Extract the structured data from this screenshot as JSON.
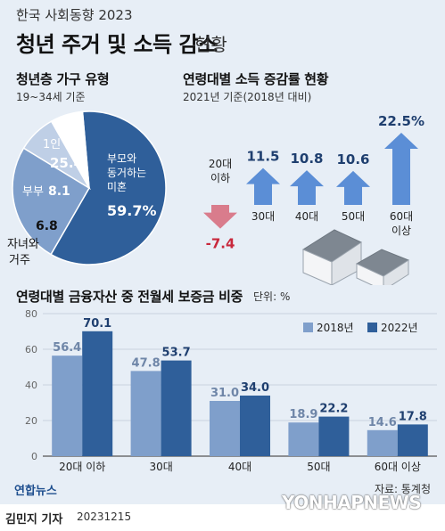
{
  "header": {
    "supertitle": "한국 사회동향 2023",
    "title": "청년 주거 및 소득 감소",
    "title_suffix": "현황"
  },
  "colors": {
    "background": "#e7eef6",
    "dark_blue": "#2f5f9a",
    "light_blue": "#7f9fcb",
    "pale_blue": "#bfcfe6",
    "arrow_blue": "#5b8ed6",
    "arrow_pink": "#d97c8c",
    "negative_red": "#c8283c"
  },
  "chart_data": [
    {
      "type": "pie",
      "title": "청년층 가구 유형",
      "subtitle": "19~34세 기준",
      "slices": [
        {
          "label": "부모와 동거하는 미혼",
          "value": 59.7,
          "color": "#2f5f9a"
        },
        {
          "label": "1인 가구",
          "value": 25.4,
          "color": "#7f9fcb"
        },
        {
          "label": "부부",
          "value": 8.1,
          "color": "#bfcfe6"
        },
        {
          "label": "자녀와 거주",
          "value": 6.8,
          "color": "#ffffff"
        }
      ],
      "unit": "%"
    },
    {
      "type": "bar",
      "title": "연령대별 소득 증감률 현황",
      "subtitle": "2021년 기준(2018년 대비)",
      "categories": [
        "20대 이하",
        "30대",
        "40대",
        "50대",
        "60대 이상"
      ],
      "values": [
        -7.4,
        11.5,
        10.8,
        10.6,
        22.5
      ],
      "value_labels": [
        "-7.4",
        "11.5",
        "10.8",
        "10.6",
        "22.5%"
      ],
      "unit": "%"
    },
    {
      "type": "bar",
      "title": "연령대별 금융자산 중 전월세 보증금 비중",
      "unit_label": "단위: %",
      "categories": [
        "20대 이하",
        "30대",
        "40대",
        "50대",
        "60대 이상"
      ],
      "series": [
        {
          "name": "2018년",
          "values": [
            56.4,
            47.8,
            31.0,
            18.9,
            14.6
          ],
          "labels": [
            "56.4",
            "47.8",
            "31.0",
            "18.9",
            "14.6"
          ]
        },
        {
          "name": "2022년",
          "values": [
            70.1,
            53.7,
            34.0,
            22.2,
            17.8
          ],
          "labels": [
            "70.1",
            "53.7",
            "34.0",
            "22.2",
            "17.8"
          ]
        }
      ],
      "y_ticks": [
        "0",
        "20",
        "40",
        "60",
        "80"
      ],
      "ylim": [
        0,
        80
      ],
      "grid": true,
      "legend_position": "top-right"
    }
  ],
  "footer": {
    "source": "자료: 통계청",
    "author": "김민지 기자",
    "date": "20231215",
    "logo_left": "연합뉴스",
    "logo_right": "YONHAPNEWS"
  }
}
